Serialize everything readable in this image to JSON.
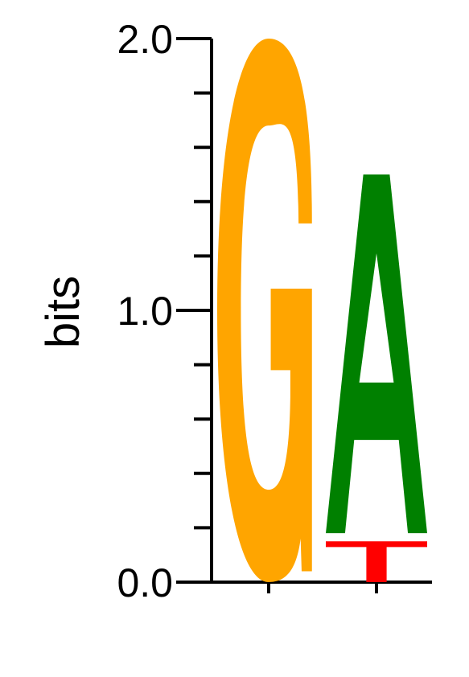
{
  "chart_data": {
    "type": "sequence-logo",
    "ylabel": "bits",
    "ylim": [
      0,
      2
    ],
    "yticks": [
      {
        "value": 0,
        "label": "0.0"
      },
      {
        "value": 1,
        "label": "1.0"
      },
      {
        "value": 2,
        "label": "2.0"
      }
    ],
    "minor_tick_step": 0.2,
    "positions": [
      {
        "letters": [
          {
            "letter": "G",
            "bottom": 0.0,
            "top": 2.0,
            "color": "#FFA500"
          }
        ]
      },
      {
        "letters": [
          {
            "letter": "T",
            "bottom": 0.0,
            "top": 0.15,
            "color": "#FF0000"
          },
          {
            "letter": "A",
            "bottom": 0.18,
            "top": 1.5,
            "color": "#008000"
          }
        ]
      }
    ]
  }
}
